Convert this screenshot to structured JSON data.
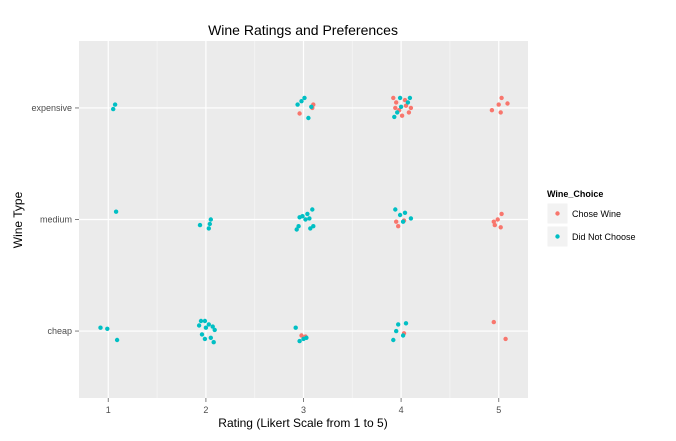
{
  "chart_data": {
    "type": "scatter",
    "title": "Wine Ratings and Preferences",
    "xlabel": "Rating (Likert Scale from 1 to 5)",
    "ylabel": "Wine Type",
    "xlim": [
      0.7,
      5.3
    ],
    "x_ticks": [
      1,
      2,
      3,
      4,
      5
    ],
    "categories_y": [
      "cheap",
      "medium",
      "expensive"
    ],
    "grid": true,
    "jitter": "points jittered around integer rating and category levels",
    "legend": {
      "title": "Wine_Choice",
      "position": "right",
      "entries": [
        "Chose Wine",
        "Did Not Choose"
      ]
    },
    "colors": {
      "Chose Wine": "#f8766d",
      "Did Not Choose": "#00bfc4",
      "panel": "#ebebeb",
      "grid": "#ffffff"
    },
    "series": [
      {
        "name": "Chose Wine",
        "points": [
          {
            "x": 2.98,
            "y": "cheap",
            "dy": -0.04
          },
          {
            "x": 3.02,
            "y": "cheap",
            "dy": -0.05
          },
          {
            "x": 4.03,
            "y": "cheap",
            "dy": -0.02
          },
          {
            "x": 4.95,
            "y": "cheap",
            "dy": 0.08
          },
          {
            "x": 5.07,
            "y": "cheap",
            "dy": -0.07
          },
          {
            "x": 3.95,
            "y": "medium",
            "dy": -0.02
          },
          {
            "x": 3.97,
            "y": "medium",
            "dy": -0.06
          },
          {
            "x": 4.03,
            "y": "medium",
            "dy": -0.01
          },
          {
            "x": 4.96,
            "y": "medium",
            "dy": -0.05
          },
          {
            "x": 4.99,
            "y": "medium",
            "dy": 0.0
          },
          {
            "x": 5.02,
            "y": "medium",
            "dy": -0.07
          },
          {
            "x": 5.03,
            "y": "medium",
            "dy": 0.05
          },
          {
            "x": 4.95,
            "y": "medium",
            "dy": -0.02
          },
          {
            "x": 2.96,
            "y": "expensive",
            "dy": -0.05
          },
          {
            "x": 3.1,
            "y": "expensive",
            "dy": 0.03
          },
          {
            "x": 3.09,
            "y": "expensive",
            "dy": 0.0
          },
          {
            "x": 3.92,
            "y": "expensive",
            "dy": 0.09
          },
          {
            "x": 3.95,
            "y": "expensive",
            "dy": 0.05
          },
          {
            "x": 3.98,
            "y": "expensive",
            "dy": -0.02
          },
          {
            "x": 4.01,
            "y": "expensive",
            "dy": -0.07
          },
          {
            "x": 4.04,
            "y": "expensive",
            "dy": 0.07
          },
          {
            "x": 4.05,
            "y": "expensive",
            "dy": 0.02
          },
          {
            "x": 4.08,
            "y": "expensive",
            "dy": -0.04
          },
          {
            "x": 4.1,
            "y": "expensive",
            "dy": 0.0
          },
          {
            "x": 3.94,
            "y": "expensive",
            "dy": 0.0
          },
          {
            "x": 4.93,
            "y": "expensive",
            "dy": -0.02
          },
          {
            "x": 5.0,
            "y": "expensive",
            "dy": 0.03
          },
          {
            "x": 5.03,
            "y": "expensive",
            "dy": 0.09
          },
          {
            "x": 5.09,
            "y": "expensive",
            "dy": 0.04
          },
          {
            "x": 5.02,
            "y": "expensive",
            "dy": -0.04
          }
        ]
      },
      {
        "name": "Did Not Choose",
        "points": [
          {
            "x": 0.92,
            "y": "cheap",
            "dy": 0.03
          },
          {
            "x": 0.99,
            "y": "cheap",
            "dy": 0.02
          },
          {
            "x": 1.09,
            "y": "cheap",
            "dy": -0.08
          },
          {
            "x": 1.95,
            "y": "cheap",
            "dy": 0.09
          },
          {
            "x": 1.99,
            "y": "cheap",
            "dy": 0.09
          },
          {
            "x": 2.03,
            "y": "cheap",
            "dy": 0.06
          },
          {
            "x": 1.93,
            "y": "cheap",
            "dy": 0.05
          },
          {
            "x": 2.0,
            "y": "cheap",
            "dy": 0.03
          },
          {
            "x": 2.07,
            "y": "cheap",
            "dy": 0.04
          },
          {
            "x": 2.09,
            "y": "cheap",
            "dy": 0.01
          },
          {
            "x": 1.96,
            "y": "cheap",
            "dy": -0.03
          },
          {
            "x": 2.05,
            "y": "cheap",
            "dy": -0.06
          },
          {
            "x": 1.99,
            "y": "cheap",
            "dy": -0.07
          },
          {
            "x": 2.08,
            "y": "cheap",
            "dy": -0.1
          },
          {
            "x": 2.92,
            "y": "cheap",
            "dy": 0.03
          },
          {
            "x": 2.96,
            "y": "cheap",
            "dy": -0.09
          },
          {
            "x": 3.0,
            "y": "cheap",
            "dy": -0.07
          },
          {
            "x": 3.03,
            "y": "cheap",
            "dy": -0.06
          },
          {
            "x": 3.97,
            "y": "cheap",
            "dy": 0.06
          },
          {
            "x": 4.05,
            "y": "cheap",
            "dy": 0.07
          },
          {
            "x": 3.95,
            "y": "cheap",
            "dy": 0.0
          },
          {
            "x": 3.92,
            "y": "cheap",
            "dy": -0.08
          },
          {
            "x": 4.02,
            "y": "cheap",
            "dy": -0.04
          },
          {
            "x": 1.08,
            "y": "medium",
            "dy": 0.07
          },
          {
            "x": 1.94,
            "y": "medium",
            "dy": -0.05
          },
          {
            "x": 2.05,
            "y": "medium",
            "dy": 0.0
          },
          {
            "x": 2.04,
            "y": "medium",
            "dy": -0.04
          },
          {
            "x": 2.03,
            "y": "medium",
            "dy": -0.08
          },
          {
            "x": 2.93,
            "y": "medium",
            "dy": -0.09
          },
          {
            "x": 2.96,
            "y": "medium",
            "dy": 0.02
          },
          {
            "x": 2.99,
            "y": "medium",
            "dy": 0.03
          },
          {
            "x": 3.02,
            "y": "medium",
            "dy": 0.0
          },
          {
            "x": 3.06,
            "y": "medium",
            "dy": 0.01
          },
          {
            "x": 3.09,
            "y": "medium",
            "dy": 0.09
          },
          {
            "x": 3.04,
            "y": "medium",
            "dy": 0.05
          },
          {
            "x": 2.95,
            "y": "medium",
            "dy": -0.06
          },
          {
            "x": 3.07,
            "y": "medium",
            "dy": -0.08
          },
          {
            "x": 3.1,
            "y": "medium",
            "dy": -0.06
          },
          {
            "x": 3.94,
            "y": "medium",
            "dy": 0.09
          },
          {
            "x": 3.99,
            "y": "medium",
            "dy": 0.04
          },
          {
            "x": 4.04,
            "y": "medium",
            "dy": 0.06
          },
          {
            "x": 4.1,
            "y": "medium",
            "dy": 0.01
          },
          {
            "x": 4.02,
            "y": "medium",
            "dy": -0.02
          },
          {
            "x": 1.05,
            "y": "expensive",
            "dy": -0.01
          },
          {
            "x": 1.07,
            "y": "expensive",
            "dy": 0.03
          },
          {
            "x": 2.94,
            "y": "expensive",
            "dy": 0.03
          },
          {
            "x": 3.01,
            "y": "expensive",
            "dy": 0.09
          },
          {
            "x": 2.98,
            "y": "expensive",
            "dy": 0.06
          },
          {
            "x": 3.08,
            "y": "expensive",
            "dy": 0.01
          },
          {
            "x": 3.05,
            "y": "expensive",
            "dy": -0.09
          },
          {
            "x": 3.93,
            "y": "expensive",
            "dy": -0.08
          },
          {
            "x": 3.96,
            "y": "expensive",
            "dy": -0.04
          },
          {
            "x": 4.0,
            "y": "expensive",
            "dy": 0.01
          },
          {
            "x": 4.07,
            "y": "expensive",
            "dy": 0.05
          },
          {
            "x": 4.09,
            "y": "expensive",
            "dy": 0.09
          },
          {
            "x": 3.99,
            "y": "expensive",
            "dy": 0.09
          }
        ]
      }
    ]
  }
}
